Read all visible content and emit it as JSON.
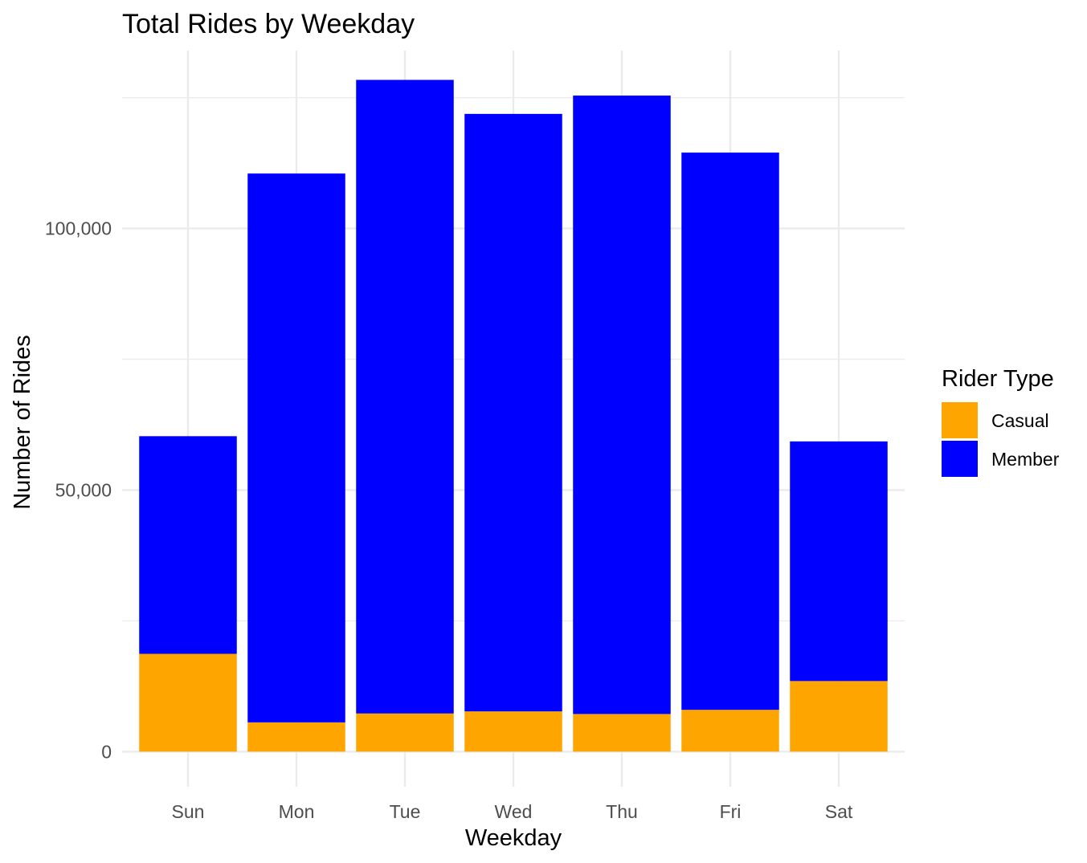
{
  "chart_data": {
    "type": "bar",
    "stacked": true,
    "title": "Total Rides by Weekday",
    "xlabel": "Weekday",
    "ylabel": "Number of Rides",
    "categories": [
      "Sun",
      "Mon",
      "Tue",
      "Wed",
      "Thu",
      "Fri",
      "Sat"
    ],
    "series": [
      {
        "name": "Casual",
        "color": "#FFA500",
        "values": [
          18700,
          5600,
          7300,
          7700,
          7200,
          8000,
          13500
        ]
      },
      {
        "name": "Member",
        "color": "#0000FF",
        "values": [
          41600,
          104900,
          121100,
          114200,
          118200,
          106500,
          45800
        ]
      }
    ],
    "yticks": [
      {
        "value": 0,
        "label": "0"
      },
      {
        "value": 50000,
        "label": "50,000"
      },
      {
        "value": 100000,
        "label": "100,000"
      }
    ],
    "ylim": [
      -6700,
      134000
    ],
    "grid": true,
    "legend": {
      "title": "Rider Type",
      "position": "right"
    }
  }
}
